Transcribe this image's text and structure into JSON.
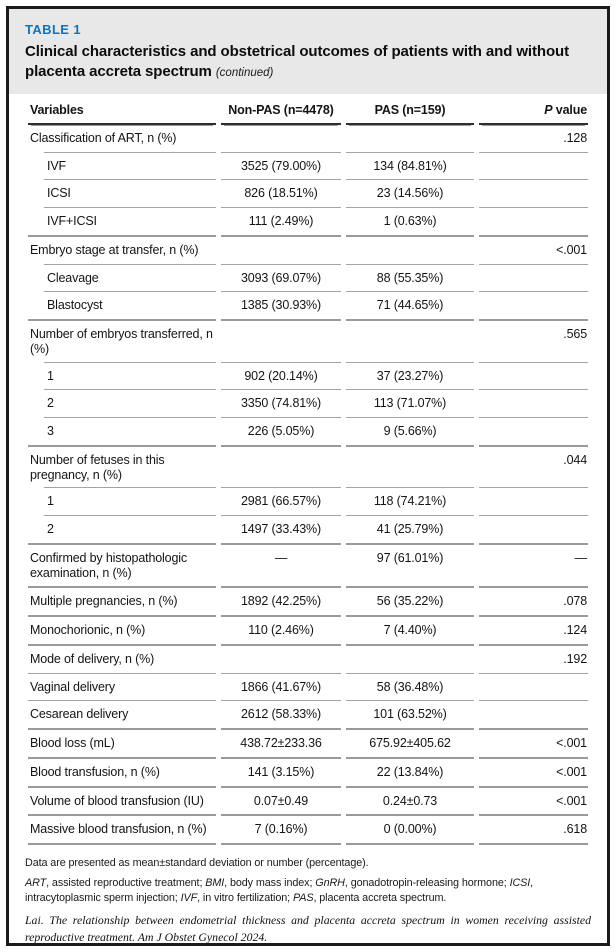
{
  "header": {
    "label": "TABLE 1",
    "title": "Clinical characteristics and obstetrical outcomes of patients with and without placenta accreta spectrum",
    "continued": "(continued)"
  },
  "columns": {
    "variables": "Variables",
    "non_pas": "Non-PAS (n=4478)",
    "pas": "PAS (n=159)",
    "p_italic": "P",
    "p_rest": " value"
  },
  "rows": [
    {
      "label": "Classification of ART, n (%)",
      "indent": false,
      "non_pas": "",
      "pas": "",
      "p": ".128",
      "rule": "subindent"
    },
    {
      "label": "IVF",
      "indent": true,
      "non_pas": "3525 (79.00%)",
      "pas": "134 (84.81%)",
      "p": "",
      "rule": "subindent"
    },
    {
      "label": "ICSI",
      "indent": true,
      "non_pas": "826 (18.51%)",
      "pas": "23 (14.56%)",
      "p": "",
      "rule": "subindent"
    },
    {
      "label": "IVF+ICSI",
      "indent": true,
      "non_pas": "111 (2.49%)",
      "pas": "1 (0.63%)",
      "p": "",
      "rule": "section"
    },
    {
      "label": "Embryo stage at transfer, n (%)",
      "indent": false,
      "non_pas": "",
      "pas": "",
      "p": "<.001",
      "rule": "subindent"
    },
    {
      "label": "Cleavage",
      "indent": true,
      "non_pas": "3093 (69.07%)",
      "pas": "88 (55.35%)",
      "p": "",
      "rule": "subindent"
    },
    {
      "label": "Blastocyst",
      "indent": true,
      "non_pas": "1385 (30.93%)",
      "pas": "71 (44.65%)",
      "p": "",
      "rule": "section"
    },
    {
      "label": "Number of embryos transferred, n (%)",
      "indent": false,
      "non_pas": "",
      "pas": "",
      "p": ".565",
      "rule": "subindent"
    },
    {
      "label": "1",
      "indent": true,
      "non_pas": "902 (20.14%)",
      "pas": "37 (23.27%)",
      "p": "",
      "rule": "subindent"
    },
    {
      "label": "2",
      "indent": true,
      "non_pas": "3350 (74.81%)",
      "pas": "113 (71.07%)",
      "p": "",
      "rule": "subindent"
    },
    {
      "label": "3",
      "indent": true,
      "non_pas": "226 (5.05%)",
      "pas": "9 (5.66%)",
      "p": "",
      "rule": "section"
    },
    {
      "label": "Number of fetuses in this pregnancy, n (%)",
      "indent": false,
      "non_pas": "",
      "pas": "",
      "p": ".044",
      "rule": "subindent"
    },
    {
      "label": "1",
      "indent": true,
      "non_pas": "2981 (66.57%)",
      "pas": "118 (74.21%)",
      "p": "",
      "rule": "subindent"
    },
    {
      "label": "2",
      "indent": true,
      "non_pas": "1497 (33.43%)",
      "pas": "41 (25.79%)",
      "p": "",
      "rule": "section"
    },
    {
      "label": "Confirmed by histopathologic examination, n (%)",
      "indent": false,
      "non_pas": "—",
      "pas": "97 (61.01%)",
      "p": "—",
      "rule": "section"
    },
    {
      "label": "Multiple pregnancies, n (%)",
      "indent": false,
      "non_pas": "1892 (42.25%)",
      "pas": "56 (35.22%)",
      "p": ".078",
      "rule": "section"
    },
    {
      "label": "Monochorionic, n (%)",
      "indent": false,
      "non_pas": "110 (2.46%)",
      "pas": "7 (4.40%)",
      "p": ".124",
      "rule": "section"
    },
    {
      "label": "Mode of delivery, n (%)",
      "indent": false,
      "non_pas": "",
      "pas": "",
      "p": ".192",
      "rule": "sub"
    },
    {
      "label": "Vaginal delivery",
      "indent": false,
      "non_pas": "1866 (41.67%)",
      "pas": "58 (36.48%)",
      "p": "",
      "rule": "sub"
    },
    {
      "label": "Cesarean delivery",
      "indent": false,
      "non_pas": "2612 (58.33%)",
      "pas": "101 (63.52%)",
      "p": "",
      "rule": "section"
    },
    {
      "label": "Blood loss (mL)",
      "indent": false,
      "non_pas": "438.72±233.36",
      "pas": "675.92±405.62",
      "p": "<.001",
      "rule": "section"
    },
    {
      "label": "Blood transfusion, n (%)",
      "indent": false,
      "non_pas": "141 (3.15%)",
      "pas": "22 (13.84%)",
      "p": "<.001",
      "rule": "section"
    },
    {
      "label": "Volume of blood transfusion (IU)",
      "indent": false,
      "non_pas": "0.07±0.49",
      "pas": "0.24±0.73",
      "p": "<.001",
      "rule": "section"
    },
    {
      "label": "Massive blood transfusion, n (%)",
      "indent": false,
      "non_pas": "7 (0.16%)",
      "pas": "0 (0.00%)",
      "p": ".618",
      "rule": "section"
    }
  ],
  "footnotes": {
    "presentation": "Data are presented as mean±standard deviation or number (percentage).",
    "abbreviations": [
      {
        "term": "ART",
        "desc": ", assisted reproductive treatment; "
      },
      {
        "term": "BMI",
        "desc": ", body mass index; "
      },
      {
        "term": "GnRH",
        "desc": ", gonadotropin-releasing hormone; "
      },
      {
        "term": "ICSI",
        "desc": ", intracytoplasmic sperm injection; "
      },
      {
        "term": "IVF",
        "desc": ", in vitro fertilization; "
      },
      {
        "term": "PAS",
        "desc": ", placenta accreta spectrum."
      }
    ],
    "citation": "Lai. The relationship between endometrial thickness and placenta accreta spectrum in women receiving assisted reproductive treatment. Am J Obstet Gynecol 2024."
  },
  "colors": {
    "accent_blue": "#1173bb",
    "band_gray": "#e8e8e8"
  }
}
